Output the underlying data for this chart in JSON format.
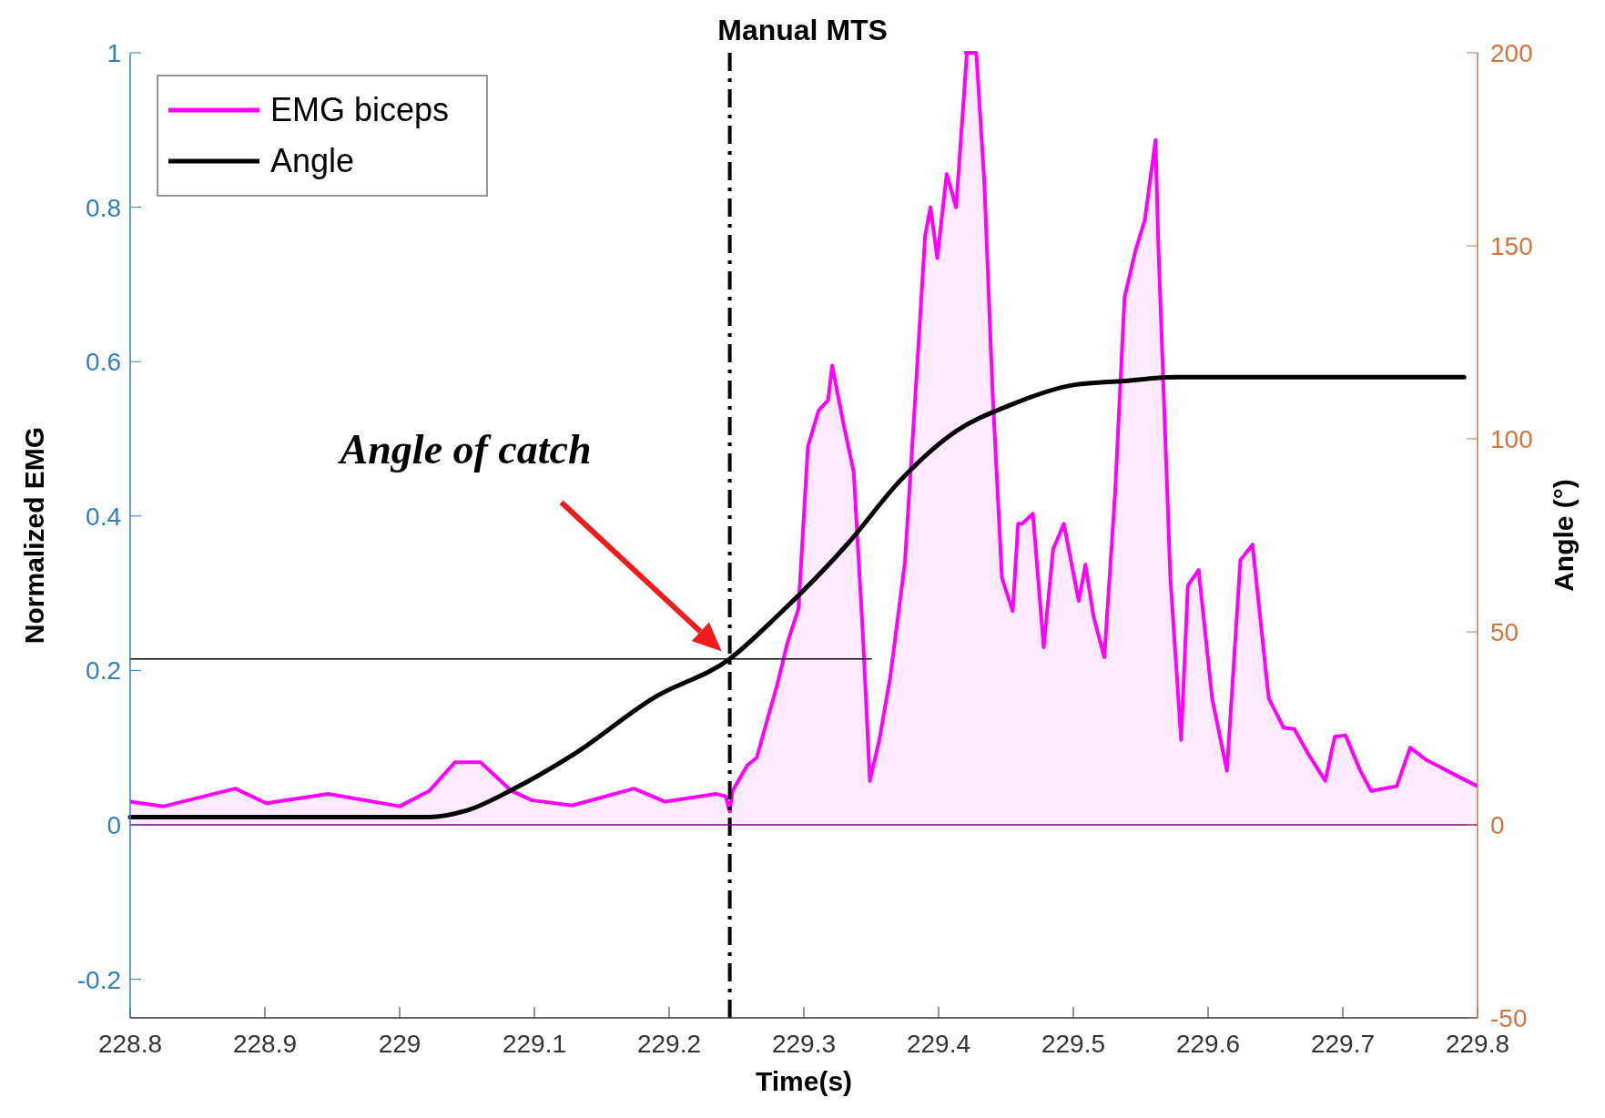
{
  "chart_data": {
    "type": "line",
    "xlabel": "Time(s)",
    "ylabel": "Normalized EMG",
    "y2label": "Angle (°)",
    "xlim": [
      228.8,
      229.8
    ],
    "xticks": [
      228.8,
      228.9,
      229,
      229.1,
      229.2,
      229.3,
      229.4,
      229.5,
      229.6,
      229.7,
      229.8
    ],
    "ylim": [
      -0.25,
      1
    ],
    "yticks": [
      -0.2,
      0,
      0.2,
      0.4,
      0.6,
      0.8,
      1
    ],
    "y2lim": [
      -50,
      200
    ],
    "y2ticks": [
      -50,
      0,
      50,
      100,
      150,
      200
    ],
    "legend": "top left",
    "grid": false,
    "series": [
      {
        "name": "EMG biceps",
        "type": "area",
        "color": "#ff00ff",
        "x": [
          228.8,
          228.825,
          228.878,
          228.901,
          228.947,
          229.0,
          229.022,
          229.041,
          229.06,
          229.083,
          229.098,
          229.128,
          229.174,
          229.197,
          229.235,
          229.242,
          229.245,
          229.247,
          229.258,
          229.265,
          229.273,
          229.28,
          229.288,
          229.296,
          229.303,
          229.311,
          229.318,
          229.321,
          229.329,
          229.337,
          229.344,
          229.349,
          229.356,
          229.364,
          229.375,
          229.383,
          229.39,
          229.394,
          229.399,
          229.406,
          229.413,
          229.421,
          229.42,
          229.428,
          229.434,
          229.44,
          229.447,
          229.455,
          229.459,
          229.462,
          229.47,
          229.478,
          229.485,
          229.493,
          229.504,
          229.509,
          229.515,
          229.523,
          229.531,
          229.538,
          229.546,
          229.553,
          229.561,
          229.563,
          229.572,
          229.58,
          229.585,
          229.593,
          229.603,
          229.614,
          229.624,
          229.633,
          229.645,
          229.656,
          229.664,
          229.675,
          229.687,
          229.694,
          229.702,
          229.713,
          229.721,
          229.74,
          229.75,
          229.762,
          229.77,
          229.783,
          229.8
        ],
        "values": [
          0.03,
          0.024,
          0.047,
          0.028,
          0.04,
          0.024,
          0.044,
          0.081,
          0.081,
          0.044,
          0.032,
          0.025,
          0.047,
          0.03,
          0.04,
          0.037,
          0.017,
          0.044,
          0.077,
          0.087,
          0.137,
          0.18,
          0.237,
          0.28,
          0.49,
          0.537,
          0.55,
          0.595,
          0.523,
          0.457,
          0.24,
          0.057,
          0.11,
          0.19,
          0.34,
          0.563,
          0.763,
          0.8,
          0.734,
          0.843,
          0.8,
          1,
          1,
          1,
          0.83,
          0.563,
          0.32,
          0.277,
          0.39,
          0.39,
          0.403,
          0.23,
          0.357,
          0.39,
          0.29,
          0.337,
          0.27,
          0.217,
          0.43,
          0.683,
          0.743,
          0.783,
          0.887,
          0.756,
          0.32,
          0.11,
          0.31,
          0.33,
          0.164,
          0.07,
          0.343,
          0.363,
          0.164,
          0.126,
          0.124,
          0.09,
          0.057,
          0.114,
          0.116,
          0.07,
          0.044,
          0.05,
          0.1,
          0.084,
          0.077,
          0.065,
          0.05
        ]
      },
      {
        "name": "Angle",
        "axis": "y2",
        "color": "#000000",
        "x": [
          228.8,
          228.999,
          229.022,
          229.052,
          229.083,
          229.128,
          229.189,
          229.245,
          229.28,
          229.333,
          229.371,
          229.409,
          229.455,
          229.501,
          229.538,
          229.576,
          229.614,
          229.728,
          229.79
        ],
        "values": [
          2,
          2,
          2,
          4,
          9,
          18,
          33,
          43,
          54,
          73,
          89,
          101,
          109,
          114,
          115,
          116,
          116,
          116,
          116
        ]
      },
      {
        "axis": "y2",
        "color": "#000000",
        "x": [
          228.8,
          229.35
        ],
        "values": [
          43,
          43
        ]
      }
    ],
    "ref_lines": [
      {
        "axis": "x",
        "value": 229.245,
        "label": "Manual MTS",
        "color": "#000000",
        "line_style": "dashed"
      },
      {
        "axis": "y",
        "value": 0,
        "color": "#800080",
        "line_style": "solid"
      }
    ],
    "annotations": [
      "Angle of catch"
    ]
  }
}
